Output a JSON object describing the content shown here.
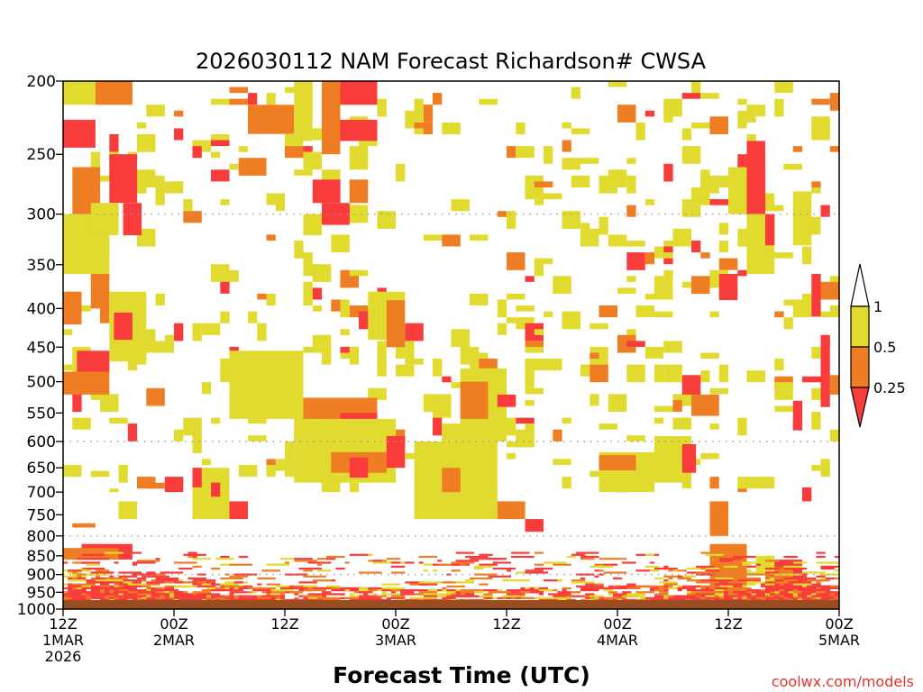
{
  "chart_data": {
    "type": "heatmap",
    "title": "2026030112 NAM Forecast Richardson# CWSA",
    "xlabel": "Forecast Time (UTC)",
    "ylabel": "",
    "credit": "coolwx.com/models",
    "y_axis": {
      "unit": "hPa",
      "range": [
        1000,
        200
      ],
      "ticks": [
        200,
        250,
        300,
        350,
        400,
        450,
        500,
        550,
        600,
        650,
        700,
        750,
        800,
        850,
        900,
        950,
        1000
      ],
      "gridlines_at": [
        300,
        600,
        800,
        900
      ]
    },
    "x_axis": {
      "unit": "forecast hour",
      "range": [
        0,
        84
      ],
      "ticks": [
        {
          "hour": 0,
          "line1": "12Z",
          "line2": "1MAR",
          "line3": "2026"
        },
        {
          "hour": 12,
          "line1": "00Z",
          "line2": "2MAR",
          "line3": ""
        },
        {
          "hour": 24,
          "line1": "12Z",
          "line2": "",
          "line3": ""
        },
        {
          "hour": 36,
          "line1": "00Z",
          "line2": "3MAR",
          "line3": ""
        },
        {
          "hour": 48,
          "line1": "12Z",
          "line2": "",
          "line3": ""
        },
        {
          "hour": 60,
          "line1": "00Z",
          "line2": "4MAR",
          "line3": ""
        },
        {
          "hour": 72,
          "line1": "12Z",
          "line2": "",
          "line3": ""
        },
        {
          "hour": 84,
          "line1": "00Z",
          "line2": "5MAR",
          "line3": ""
        }
      ]
    },
    "colorbar": {
      "levels": [
        "1",
        "0.5",
        "0.25"
      ],
      "bins": [
        {
          "range": "> 1",
          "color": "#ffffff"
        },
        {
          "range": "0.5 - 1",
          "color": "#e1da2f"
        },
        {
          "range": "0.25 - 0.5",
          "color": "#ef7d23"
        },
        {
          "range": "< 0.25",
          "color": "#f83b3b"
        }
      ]
    },
    "terrain_color": "#9b4d22",
    "regions": [
      {
        "h": [
          0,
          3.5
        ],
        "p": [
          200,
          215
        ],
        "cls": "0.5-1"
      },
      {
        "h": [
          3.5,
          7.5
        ],
        "p": [
          200,
          215
        ],
        "cls": "0.25-0.5"
      },
      {
        "h": [
          0,
          3.5
        ],
        "p": [
          225,
          245
        ],
        "cls": "<0.25"
      },
      {
        "h": [
          5,
          8
        ],
        "p": [
          250,
          290
        ],
        "cls": "<0.25"
      },
      {
        "h": [
          1,
          4
        ],
        "p": [
          260,
          300
        ],
        "cls": "0.25-0.5"
      },
      {
        "h": [
          0,
          5
        ],
        "p": [
          300,
          360
        ],
        "cls": "0.5-1"
      },
      {
        "h": [
          3,
          6
        ],
        "p": [
          290,
          320
        ],
        "cls": "0.5-1"
      },
      {
        "h": [
          6.5,
          8.5
        ],
        "p": [
          290,
          320
        ],
        "cls": "<0.25"
      },
      {
        "h": [
          3,
          5
        ],
        "p": [
          360,
          400
        ],
        "cls": "0.25-0.5"
      },
      {
        "h": [
          0,
          2
        ],
        "p": [
          380,
          420
        ],
        "cls": "0.25-0.5"
      },
      {
        "h": [
          5,
          9
        ],
        "p": [
          380,
          470
        ],
        "cls": "0.5-1"
      },
      {
        "h": [
          5.5,
          7.5
        ],
        "p": [
          405,
          440
        ],
        "cls": "<0.25"
      },
      {
        "h": [
          1.5,
          5
        ],
        "p": [
          455,
          485
        ],
        "cls": "<0.25"
      },
      {
        "h": [
          0,
          5
        ],
        "p": [
          485,
          520
        ],
        "cls": "0.25-0.5"
      },
      {
        "h": [
          20,
          25
        ],
        "p": [
          215,
          235
        ],
        "cls": "0.25-0.5"
      },
      {
        "h": [
          25,
          27
        ],
        "p": [
          200,
          240
        ],
        "cls": "0.5-1"
      },
      {
        "h": [
          28,
          30
        ],
        "p": [
          200,
          250
        ],
        "cls": "0.25-0.5"
      },
      {
        "h": [
          30,
          34
        ],
        "p": [
          200,
          215
        ],
        "cls": "<0.25"
      },
      {
        "h": [
          30,
          34
        ],
        "p": [
          225,
          240
        ],
        "cls": "<0.25"
      },
      {
        "h": [
          27,
          30
        ],
        "p": [
          270,
          290
        ],
        "cls": "<0.25"
      },
      {
        "h": [
          28,
          31
        ],
        "p": [
          290,
          310
        ],
        "cls": "<0.25"
      },
      {
        "h": [
          31,
          33
        ],
        "p": [
          270,
          290
        ],
        "cls": "0.25-0.5"
      },
      {
        "h": [
          26,
          28
        ],
        "p": [
          300,
          320
        ],
        "cls": "0.5-1"
      },
      {
        "h": [
          33,
          37
        ],
        "p": [
          380,
          440
        ],
        "cls": "0.5-1"
      },
      {
        "h": [
          35,
          37
        ],
        "p": [
          390,
          450
        ],
        "cls": "0.25-0.5"
      },
      {
        "h": [
          20,
          22
        ],
        "p": [
          485,
          520
        ],
        "cls": "<0.25"
      },
      {
        "h": [
          22,
          26
        ],
        "p": [
          495,
          540
        ],
        "cls": "0.25-0.5"
      },
      {
        "h": [
          18,
          26
        ],
        "p": [
          455,
          560
        ],
        "cls": "0.5-1"
      },
      {
        "h": [
          26,
          34
        ],
        "p": [
          525,
          590
        ],
        "cls": "0.25-0.5"
      },
      {
        "h": [
          27,
          29
        ],
        "p": [
          560,
          590
        ],
        "cls": "<0.25"
      },
      {
        "h": [
          30,
          34
        ],
        "p": [
          550,
          595
        ],
        "cls": "<0.25"
      },
      {
        "h": [
          25,
          36
        ],
        "p": [
          560,
          680
        ],
        "cls": "0.5-1"
      },
      {
        "h": [
          29,
          35
        ],
        "p": [
          620,
          660
        ],
        "cls": "0.25-0.5"
      },
      {
        "h": [
          31,
          33
        ],
        "p": [
          630,
          670
        ],
        "cls": "<0.25"
      },
      {
        "h": [
          35,
          37
        ],
        "p": [
          590,
          650
        ],
        "cls": "<0.25"
      },
      {
        "h": [
          43,
          48
        ],
        "p": [
          480,
          600
        ],
        "cls": "0.5-1"
      },
      {
        "h": [
          43,
          46
        ],
        "p": [
          500,
          560
        ],
        "cls": "0.25-0.5"
      },
      {
        "h": [
          47,
          49
        ],
        "p": [
          520,
          540
        ],
        "cls": "<0.25"
      },
      {
        "h": [
          38,
          47
        ],
        "p": [
          600,
          760
        ],
        "cls": "0.5-1"
      },
      {
        "h": [
          41,
          43
        ],
        "p": [
          650,
          700
        ],
        "cls": "0.25-0.5"
      },
      {
        "h": [
          47,
          50
        ],
        "p": [
          720,
          760
        ],
        "cls": "0.25-0.5"
      },
      {
        "h": [
          58,
          64
        ],
        "p": [
          620,
          700
        ],
        "cls": "0.5-1"
      },
      {
        "h": [
          58,
          62
        ],
        "p": [
          625,
          655
        ],
        "cls": "0.25-0.5"
      },
      {
        "h": [
          64,
          68
        ],
        "p": [
          590,
          680
        ],
        "cls": "0.5-1"
      },
      {
        "h": [
          67,
          68.5
        ],
        "p": [
          605,
          660
        ],
        "cls": "<0.25"
      },
      {
        "h": [
          73,
          76
        ],
        "p": [
          250,
          300
        ],
        "cls": "<0.25"
      },
      {
        "h": [
          74,
          76
        ],
        "p": [
          240,
          270
        ],
        "cls": "<0.25"
      },
      {
        "h": [
          71,
          73
        ],
        "p": [
          360,
          390
        ],
        "cls": "<0.25"
      },
      {
        "h": [
          72,
          74
        ],
        "p": [
          260,
          300
        ],
        "cls": "0.5-1"
      },
      {
        "h": [
          74,
          77
        ],
        "p": [
          300,
          360
        ],
        "cls": "0.5-1"
      },
      {
        "h": [
          76,
          77
        ],
        "p": [
          300,
          330
        ],
        "cls": "<0.25"
      },
      {
        "h": [
          79,
          81
        ],
        "p": [
          280,
          330
        ],
        "cls": "0.5-1"
      },
      {
        "h": [
          81,
          82
        ],
        "p": [
          360,
          410
        ],
        "cls": "<0.25"
      },
      {
        "h": [
          82,
          83
        ],
        "p": [
          440,
          540
        ],
        "cls": "<0.25"
      },
      {
        "h": [
          83,
          84
        ],
        "p": [
          490,
          520
        ],
        "cls": "0.25-0.5"
      },
      {
        "h": [
          67,
          69
        ],
        "p": [
          490,
          520
        ],
        "cls": "<0.25"
      },
      {
        "h": [
          68,
          71
        ],
        "p": [
          520,
          555
        ],
        "cls": "0.25-0.5"
      },
      {
        "h": [
          79,
          80
        ],
        "p": [
          530,
          580
        ],
        "cls": "<0.25"
      },
      {
        "h": [
          1,
          3.5
        ],
        "p": [
          770,
          780
        ],
        "cls": "0.25-0.5"
      },
      {
        "h": [
          2,
          7.5
        ],
        "p": [
          820,
          860
        ],
        "cls": "<0.25"
      },
      {
        "h": [
          0,
          6
        ],
        "p": [
          830,
          860
        ],
        "cls": "0.25-0.5"
      },
      {
        "h": [
          6,
          8
        ],
        "p": [
          720,
          760
        ],
        "cls": "0.5-1"
      },
      {
        "h": [
          14,
          18
        ],
        "p": [
          650,
          760
        ],
        "cls": "0.5-1"
      },
      {
        "h": [
          14,
          15
        ],
        "p": [
          650,
          690
        ],
        "cls": "<0.25"
      },
      {
        "h": [
          16,
          17
        ],
        "p": [
          680,
          710
        ],
        "cls": "<0.25"
      },
      {
        "h": [
          18,
          20
        ],
        "p": [
          720,
          760
        ],
        "cls": "<0.25"
      },
      {
        "h": [
          50,
          52
        ],
        "p": [
          760,
          790
        ],
        "cls": "<0.25"
      },
      {
        "h": [
          80,
          81
        ],
        "p": [
          690,
          720
        ],
        "cls": "<0.25"
      },
      {
        "h": [
          70,
          72
        ],
        "p": [
          720,
          800
        ],
        "cls": "0.25-0.5"
      },
      {
        "h": [
          70,
          74
        ],
        "p": [
          820,
          950
        ],
        "cls": "0.25-0.5"
      },
      {
        "h": [
          76,
          80
        ],
        "p": [
          860,
          960
        ],
        "cls": "<0.25"
      },
      {
        "h": [
          75,
          77
        ],
        "p": [
          850,
          900
        ],
        "cls": "0.5-1"
      },
      {
        "h": [
          77,
          79
        ],
        "p": [
          880,
          950
        ],
        "cls": "0.25-0.5"
      }
    ],
    "sparse": {
      "p_range": [
        200,
        700
      ],
      "h_range": [
        0,
        84
      ],
      "density": 0.07,
      "mix": {
        "0.5-1": 0.78,
        "0.25-0.5": 0.12,
        "<0.25": 0.1
      }
    },
    "boundary_layer": {
      "p_range": [
        840,
        995
      ],
      "mix": {
        "0.5-1": 0.22,
        "0.25-0.5": 0.32,
        "<0.25": 0.46
      }
    }
  }
}
